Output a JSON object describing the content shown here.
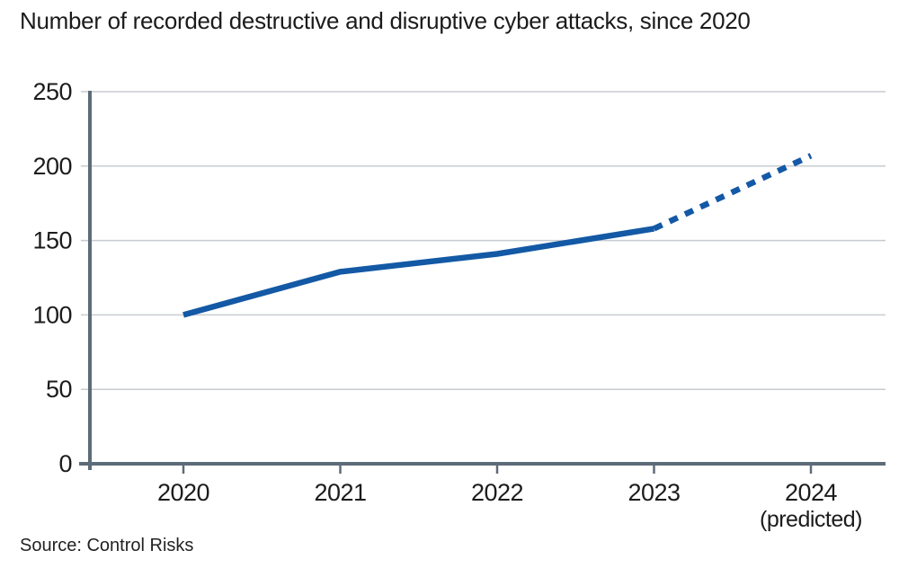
{
  "title": "Number of recorded destructive and disruptive cyber attacks, since 2020",
  "source": "Source: Control Risks",
  "chart_data": {
    "type": "line",
    "title": "Number of recorded destructive and disruptive cyber attacks, since 2020",
    "xlabel": "",
    "ylabel": "",
    "x_tick_labels": [
      "2020",
      "2021",
      "2022",
      "2023",
      "2024"
    ],
    "x_tick_sublabels": [
      "",
      "",
      "",
      "",
      "(predicted)"
    ],
    "ylim": [
      0,
      250
    ],
    "yticks": [
      0,
      50,
      100,
      150,
      200,
      250
    ],
    "grid": true,
    "legend": "none",
    "series": [
      {
        "name": "Recorded attacks",
        "style": "solid",
        "points": [
          {
            "x": "2020",
            "y": 100
          },
          {
            "x": "2021",
            "y": 129
          },
          {
            "x": "2022",
            "y": 141
          },
          {
            "x": "2023",
            "y": 158
          }
        ]
      },
      {
        "name": "Predicted attacks",
        "style": "dashed",
        "points": [
          {
            "x": "2023",
            "y": 158
          },
          {
            "x": "2024",
            "y": 207
          }
        ]
      }
    ],
    "colors": {
      "line": "#1359a5",
      "axis": "#5e6b79",
      "grid": "#c8ccd1",
      "text": "#1c1c1c",
      "background": "#ffffff"
    }
  }
}
